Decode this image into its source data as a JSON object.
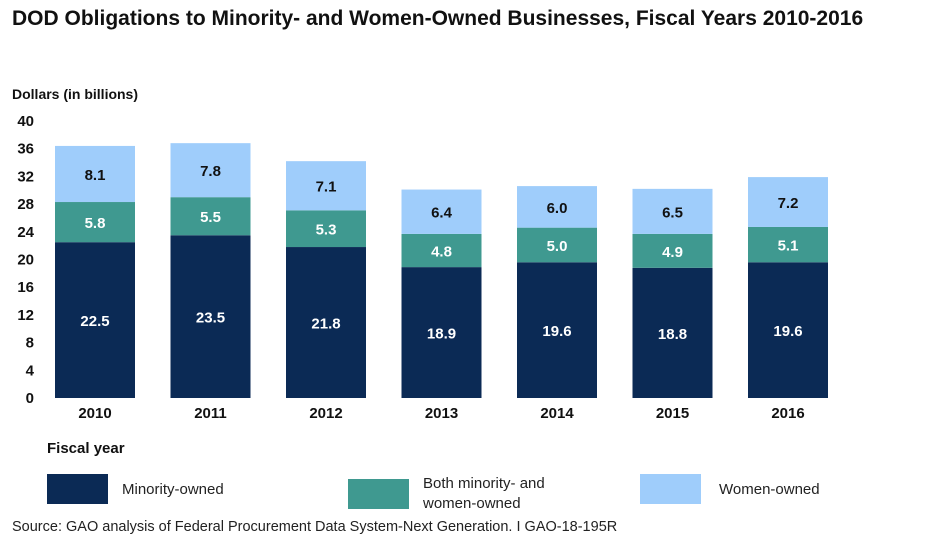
{
  "chart_data": {
    "type": "bar",
    "stacked": true,
    "title": "DOD Obligations to Minority- and Women-Owned Businesses, Fiscal Years 2010-2016",
    "ylabel": "Dollars (in billions)",
    "xlabel": "Fiscal year",
    "ylim": [
      0,
      40
    ],
    "yticks": [
      0,
      4,
      8,
      12,
      16,
      20,
      24,
      28,
      32,
      36,
      40
    ],
    "grid": false,
    "legend_position": "bottom",
    "categories": [
      "2010",
      "2011",
      "2012",
      "2013",
      "2014",
      "2015",
      "2016"
    ],
    "series": [
      {
        "name": "Minority-owned",
        "color": "#0b2a55",
        "label_color": "#ffffff",
        "values": [
          22.5,
          23.5,
          21.8,
          18.9,
          19.6,
          18.8,
          19.6
        ]
      },
      {
        "name": "Both minority- and women-owned",
        "color": "#3f9990",
        "label_color": "#ffffff",
        "values": [
          5.8,
          5.5,
          5.3,
          4.8,
          5.0,
          4.9,
          5.1
        ]
      },
      {
        "name": "Women-owned",
        "color": "#9fcdfb",
        "label_color": "#111111",
        "values": [
          8.1,
          7.8,
          7.1,
          6.4,
          6.0,
          6.5,
          7.2
        ]
      }
    ],
    "source": "Source: GAO analysis of Federal Procurement Data System-Next Generation. I GAO-18-195R"
  }
}
